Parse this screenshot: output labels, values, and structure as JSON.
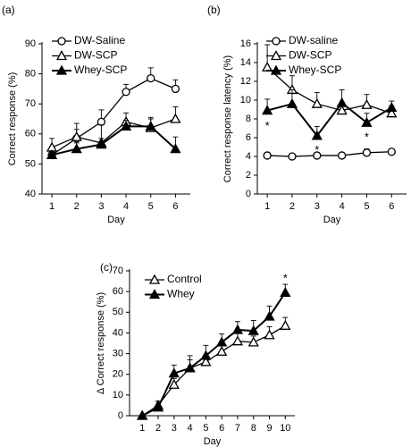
{
  "chart_data": [
    {
      "type": "line",
      "label": "(a)",
      "x_label": "Day",
      "y_label": "Correct response (%)",
      "x": [
        1,
        2,
        3,
        4,
        5,
        6
      ],
      "xlim": [
        0.6,
        6.6
      ],
      "xticks": [
        1,
        2,
        3,
        4,
        5,
        6
      ],
      "ylim": [
        40,
        90
      ],
      "yticks": [
        40,
        50,
        60,
        70,
        80,
        90
      ],
      "legend": "upper-left",
      "series": [
        {
          "name": "DW-Saline",
          "color": "#000000",
          "marker": "circle-open",
          "values": [
            53,
            58.5,
            64,
            74,
            78.5,
            75
          ],
          "errors": [
            1,
            3,
            4,
            2.5,
            3.5,
            3
          ]
        },
        {
          "name": "DW-SCP",
          "color": "#000000",
          "marker": "triangle-open",
          "values": [
            55.5,
            59,
            57,
            64,
            62,
            65
          ],
          "errors": [
            3,
            4.5,
            6,
            3,
            3,
            4
          ]
        },
        {
          "name": "Whey-SCP",
          "color": "#000000",
          "marker": "triangle-filled",
          "values": [
            53,
            55,
            56.5,
            62.5,
            62.5,
            55
          ],
          "errors": [
            1,
            2,
            2,
            2,
            3,
            4
          ]
        }
      ]
    },
    {
      "type": "line",
      "label": "(b)",
      "x_label": "Day",
      "y_label": "Correct response latency (%)",
      "x": [
        1,
        2,
        3,
        4,
        5,
        6
      ],
      "xlim": [
        0.6,
        6.6
      ],
      "xticks": [
        1,
        2,
        3,
        4,
        5,
        6
      ],
      "ylim": [
        0,
        16
      ],
      "yticks": [
        0,
        2,
        4,
        6,
        8,
        10,
        12,
        14,
        16
      ],
      "legend": "upper-left",
      "series": [
        {
          "name": "DW-saline",
          "color": "#000000",
          "marker": "circle-open",
          "values": [
            4.1,
            4.0,
            4.1,
            4.1,
            4.4,
            4.5
          ],
          "errors": [
            0.3,
            0.2,
            0.3,
            0.2,
            0.4,
            0.2
          ]
        },
        {
          "name": "DW-SCP",
          "color": "#000000",
          "marker": "triangle-open",
          "values": [
            13.5,
            11.1,
            9.6,
            8.9,
            9.5,
            8.6
          ],
          "errors": [
            2.4,
            1.5,
            1.2,
            0.8,
            1.1,
            0.8
          ]
        },
        {
          "name": "Whey-SCP",
          "color": "#000000",
          "marker": "triangle-filled",
          "values": [
            8.9,
            9.6,
            6.2,
            9.7,
            7.6,
            9.2
          ],
          "errors": [
            1.2,
            1.5,
            1.0,
            1.4,
            1.0,
            0.7
          ]
        }
      ],
      "annotations": [
        {
          "text": "*",
          "x": 1,
          "y": 7.2
        },
        {
          "text": "*",
          "x": 3,
          "y": 4.6
        },
        {
          "text": "*",
          "x": 5,
          "y": 6.0
        }
      ]
    },
    {
      "type": "line",
      "label": "(c)",
      "x_label": "Day",
      "y_label": "Δ Correct response (%)",
      "x": [
        1,
        2,
        3,
        4,
        5,
        6,
        7,
        8,
        9,
        10
      ],
      "xlim": [
        0.2,
        10.6
      ],
      "xticks": [
        1,
        2,
        3,
        4,
        5,
        6,
        7,
        8,
        9,
        10
      ],
      "ylim": [
        0,
        70
      ],
      "yticks": [
        0,
        10,
        20,
        30,
        40,
        50,
        60,
        70
      ],
      "legend": "upper-left",
      "series": [
        {
          "name": "Control",
          "color": "#000000",
          "marker": "triangle-open",
          "values": [
            0,
            5,
            15,
            23,
            26,
            31,
            36,
            35.5,
            39,
            43.5
          ],
          "errors": [
            0,
            2,
            3,
            4,
            3,
            3,
            4,
            3,
            4,
            4
          ]
        },
        {
          "name": "Whey",
          "color": "#000000",
          "marker": "triangle-filled",
          "values": [
            0,
            4,
            20.5,
            23,
            29,
            35.5,
            41.5,
            41,
            48,
            59.5
          ],
          "errors": [
            0,
            3,
            4,
            6,
            5,
            4,
            4,
            5,
            5,
            4
          ]
        }
      ],
      "annotations": [
        {
          "text": "*",
          "x": 10,
          "y": 66
        }
      ]
    }
  ]
}
